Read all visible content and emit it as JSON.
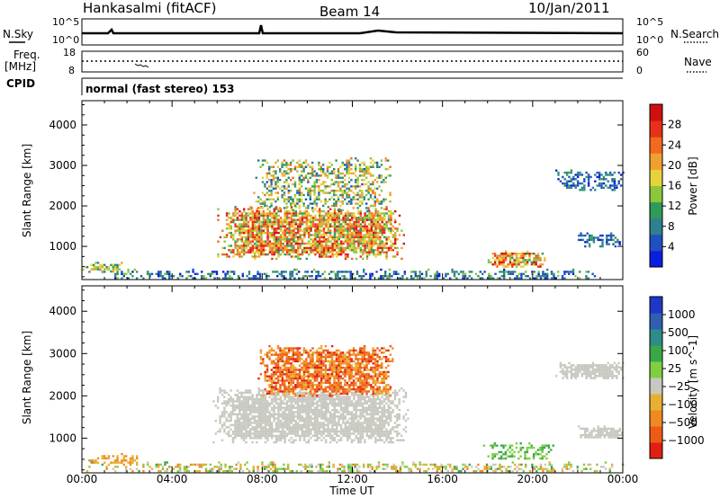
{
  "header": {
    "station": "Hankasalmi (fitACF)",
    "beam": "Beam 14",
    "date": "10/Jan/2011"
  },
  "strips": {
    "nsky_label": "N.Sky",
    "nsky_ticks": [
      "10^5",
      "10^0"
    ],
    "nsearch_label": "N.Search",
    "nsearch_ticks": [
      "10^5",
      "10^0"
    ],
    "freq_label_1": "Freq.",
    "freq_label_2": "[MHz]",
    "freq_ticks": [
      "18",
      "8"
    ],
    "nave_label": "Nave",
    "nave_ticks": [
      "60",
      "0"
    ],
    "cpid_label": "CPID",
    "cpid_text": "normal (fast stereo) 153"
  },
  "chart_data": [
    {
      "type": "heatmap",
      "title": "",
      "xlabel": "Time UT",
      "ylabel": "Slant Range [km]",
      "x_ticks": [
        "00:00",
        "04:00",
        "08:00",
        "12:00",
        "16:00",
        "20:00",
        "00:00"
      ],
      "xlim_hours": [
        0,
        24
      ],
      "y_ticks": [
        1000,
        2000,
        3000,
        4000
      ],
      "ylim": [
        180,
        4600
      ],
      "colorbar_label": "Power [dB]",
      "colorbar_ticks": [
        4,
        8,
        12,
        16,
        20,
        24,
        28
      ],
      "colorbar_colors": [
        "#0a1ee0",
        "#1f4fc0",
        "#2e7f8f",
        "#2f9a5a",
        "#8cc63c",
        "#e8d23a",
        "#f0a030",
        "#f06a20",
        "#e83018",
        "#d01010"
      ],
      "regions": [
        {
          "t0": 0.0,
          "t1": 24.0,
          "r0": 200,
          "r1": 450,
          "level": "low-mixed"
        },
        {
          "t0": 0.0,
          "t1": 1.8,
          "r0": 400,
          "r1": 620,
          "level": "medium"
        },
        {
          "t0": 6.0,
          "t1": 14.3,
          "r0": 700,
          "r1": 2000,
          "level": "high"
        },
        {
          "t0": 7.5,
          "t1": 13.8,
          "r0": 1900,
          "r1": 3200,
          "level": "medium-sparse"
        },
        {
          "t0": 18.0,
          "t1": 20.5,
          "r0": 500,
          "r1": 900,
          "level": "high"
        },
        {
          "t0": 21.0,
          "t1": 24.0,
          "r0": 2400,
          "r1": 2900,
          "level": "low"
        },
        {
          "t0": 22.0,
          "t1": 24.0,
          "r0": 1000,
          "r1": 1400,
          "level": "low"
        }
      ]
    },
    {
      "type": "heatmap",
      "title": "",
      "xlabel": "Time UT",
      "ylabel": "Slant Range [km]",
      "x_ticks": [
        "00:00",
        "04:00",
        "08:00",
        "12:00",
        "16:00",
        "20:00",
        "00:00"
      ],
      "xlim_hours": [
        0,
        24
      ],
      "y_ticks": [
        1000,
        2000,
        3000,
        4000
      ],
      "ylim": [
        180,
        4600
      ],
      "colorbar_label": "Velocity [m s^-1]",
      "colorbar_ticks": [
        "1000",
        "500",
        "100",
        "25",
        "−25",
        "−100",
        "−500",
        "−1000"
      ],
      "colorbar_colors": [
        "#1f36c8",
        "#2f5fb0",
        "#2f8a8a",
        "#3aa84a",
        "#7ed040",
        "#c8c8c0",
        "#e8b030",
        "#f08a20",
        "#f05a18",
        "#e02010"
      ],
      "regions": [
        {
          "t0": 0.0,
          "t1": 24.0,
          "r0": 200,
          "r1": 450,
          "level": "mixed-slow"
        },
        {
          "t0": 0.0,
          "t1": 2.5,
          "r0": 400,
          "r1": 650,
          "level": "negative-slow"
        },
        {
          "t0": 5.8,
          "t1": 14.5,
          "r0": 900,
          "r1": 2200,
          "level": "near-zero"
        },
        {
          "t0": 7.8,
          "t1": 13.8,
          "r0": 2000,
          "r1": 3200,
          "level": "negative-fast"
        },
        {
          "t0": 17.8,
          "t1": 21.0,
          "r0": 500,
          "r1": 900,
          "level": "positive-slow"
        },
        {
          "t0": 21.0,
          "t1": 24.0,
          "r0": 2400,
          "r1": 2800,
          "level": "near-zero"
        },
        {
          "t0": 22.0,
          "t1": 24.0,
          "r0": 1000,
          "r1": 1300,
          "level": "near-zero"
        }
      ]
    }
  ]
}
